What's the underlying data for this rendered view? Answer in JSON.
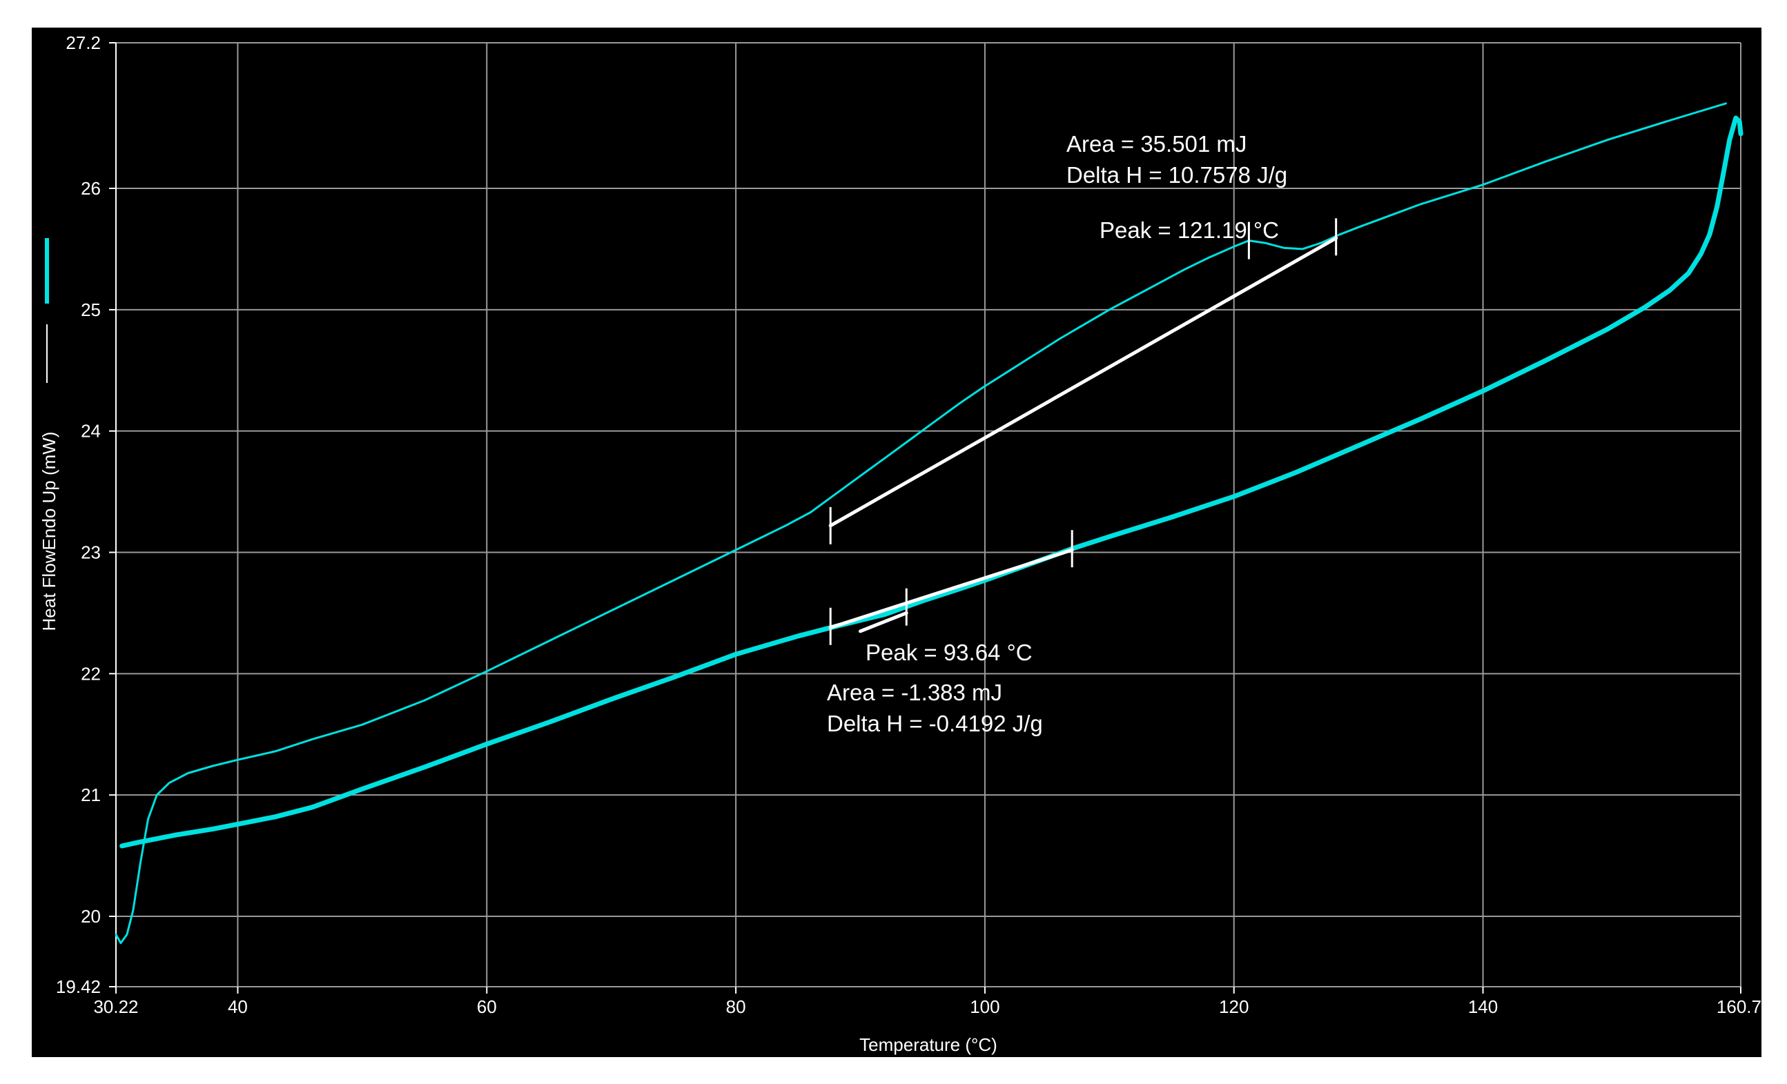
{
  "chart_data": {
    "type": "line",
    "title": "",
    "xlabel": "Temperature (°C)",
    "ylabel": "Heat FlowEndo Up (mW)",
    "xlim": [
      30.22,
      160.7
    ],
    "ylim": [
      19.42,
      27.2
    ],
    "grid": true,
    "background": "#000000",
    "x_ticks": [
      "30.22",
      "40",
      "60",
      "80",
      "100",
      "120",
      "140",
      "160.7"
    ],
    "y_ticks": [
      "19.42",
      "20",
      "21",
      "22",
      "23",
      "24",
      "25",
      "26",
      "27.2"
    ],
    "legend": {
      "placement": "left, vertical along y-axis",
      "swatch_color": "#00e5e5"
    },
    "series": [
      {
        "color": "#00e0e0",
        "points": [
          [
            30.22,
            19.85
          ],
          [
            30.6,
            19.78
          ],
          [
            31.1,
            19.85
          ],
          [
            31.6,
            20.05
          ],
          [
            32.2,
            20.45
          ],
          [
            32.8,
            20.8
          ],
          [
            33.5,
            21.0
          ],
          [
            34.5,
            21.1
          ],
          [
            36,
            21.18
          ],
          [
            38,
            21.24
          ],
          [
            40,
            21.29
          ],
          [
            43,
            21.36
          ],
          [
            46,
            21.46
          ],
          [
            50,
            21.58
          ],
          [
            55,
            21.78
          ],
          [
            60,
            22.02
          ],
          [
            65,
            22.27
          ],
          [
            70,
            22.52
          ],
          [
            75,
            22.77
          ],
          [
            80,
            23.02
          ],
          [
            84,
            23.22
          ],
          [
            86,
            23.33
          ],
          [
            88,
            23.48
          ],
          [
            90,
            23.63
          ],
          [
            92,
            23.78
          ],
          [
            94,
            23.93
          ],
          [
            96,
            24.08
          ],
          [
            98,
            24.23
          ],
          [
            100,
            24.37
          ],
          [
            102,
            24.5
          ],
          [
            104,
            24.63
          ],
          [
            106,
            24.76
          ],
          [
            108,
            24.88
          ],
          [
            110,
            25.0
          ],
          [
            112,
            25.11
          ],
          [
            114,
            25.22
          ],
          [
            116,
            25.33
          ],
          [
            118,
            25.43
          ],
          [
            120,
            25.52
          ],
          [
            121.2,
            25.57
          ],
          [
            122.5,
            25.55
          ],
          [
            124,
            25.51
          ],
          [
            125.5,
            25.5
          ],
          [
            127,
            25.55
          ],
          [
            128.5,
            25.62
          ],
          [
            130,
            25.68
          ],
          [
            135,
            25.87
          ],
          [
            140,
            26.03
          ],
          [
            145,
            26.22
          ],
          [
            150,
            26.4
          ],
          [
            155,
            26.56
          ],
          [
            159.5,
            26.7
          ]
        ]
      },
      {
        "color": "#00e0e0",
        "points": [
          [
            30.7,
            20.58
          ],
          [
            32,
            20.61
          ],
          [
            35,
            20.67
          ],
          [
            38,
            20.72
          ],
          [
            40,
            20.76
          ],
          [
            43,
            20.82
          ],
          [
            46,
            20.9
          ],
          [
            50,
            21.05
          ],
          [
            55,
            21.23
          ],
          [
            60,
            21.42
          ],
          [
            65,
            21.6
          ],
          [
            70,
            21.79
          ],
          [
            75,
            21.97
          ],
          [
            80,
            22.16
          ],
          [
            85,
            22.31
          ],
          [
            88,
            22.39
          ],
          [
            90,
            22.44
          ],
          [
            92,
            22.49
          ],
          [
            93.64,
            22.55
          ],
          [
            95,
            22.6
          ],
          [
            98,
            22.7
          ],
          [
            100,
            22.77
          ],
          [
            103,
            22.88
          ],
          [
            107,
            23.03
          ],
          [
            110,
            23.13
          ],
          [
            115,
            23.29
          ],
          [
            120,
            23.46
          ],
          [
            125,
            23.66
          ],
          [
            130,
            23.88
          ],
          [
            135,
            24.1
          ],
          [
            140,
            24.33
          ],
          [
            145,
            24.58
          ],
          [
            150,
            24.84
          ],
          [
            153,
            25.02
          ],
          [
            155,
            25.16
          ],
          [
            156.5,
            25.3
          ],
          [
            157.5,
            25.46
          ],
          [
            158.2,
            25.62
          ],
          [
            158.8,
            25.85
          ],
          [
            159.3,
            26.12
          ],
          [
            159.8,
            26.4
          ],
          [
            160.3,
            26.58
          ],
          [
            160.6,
            26.55
          ],
          [
            160.7,
            26.45
          ]
        ]
      }
    ],
    "baselines": [
      {
        "color": "#ffffff",
        "points": [
          [
            87.6,
            23.22
          ],
          [
            128.2,
            25.59
          ]
        ]
      },
      {
        "color": "#ffffff",
        "points": [
          [
            90,
            22.35
          ],
          [
            93.7,
            22.5
          ]
        ]
      },
      {
        "color": "#ffffff",
        "points": [
          [
            87.6,
            22.38
          ],
          [
            107,
            23.02
          ]
        ]
      }
    ],
    "markers": [
      {
        "x": 87.6,
        "y": 23.22
      },
      {
        "x": 121.2,
        "y": 25.57
      },
      {
        "x": 128.2,
        "y": 25.6
      },
      {
        "x": 87.6,
        "y": 22.39
      },
      {
        "x": 93.7,
        "y": 22.55
      },
      {
        "x": 107,
        "y": 23.03
      }
    ],
    "annotations": {
      "upper_area": "Area = 35.501 mJ",
      "upper_delta": "Delta H = 10.7578 J/g",
      "upper_peak": "Peak = 121.19 °C",
      "lower_peak": "Peak = 93.64 °C",
      "lower_area": "Area = -1.383 mJ",
      "lower_delta": "Delta H = -0.4192 J/g"
    }
  }
}
